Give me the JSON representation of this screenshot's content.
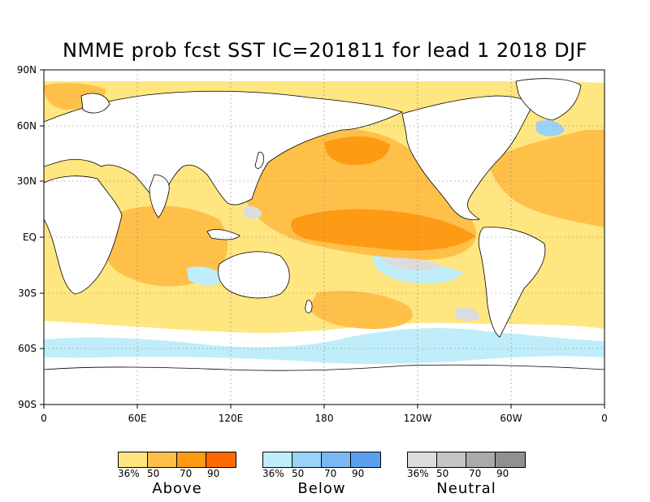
{
  "title": "NMME prob fcst SST IC=201811 for lead 1 2018 DJF",
  "lat_labels": [
    "90N",
    "60N",
    "30N",
    "EQ",
    "30S",
    "60S",
    "90S"
  ],
  "lon_labels": [
    "0",
    "60E",
    "120E",
    "180",
    "120W",
    "60W",
    "0"
  ],
  "legend": [
    {
      "category": "Above",
      "ticks": [
        "36%",
        "50",
        "70",
        "90"
      ],
      "colors": [
        "#ffe680",
        "#ffc04a",
        "#ff9a14",
        "#ff6a00"
      ]
    },
    {
      "category": "Below",
      "ticks": [
        "36%",
        "50",
        "70",
        "90"
      ],
      "colors": [
        "#bfeefa",
        "#9ad2f8",
        "#7ab8f4",
        "#5aa0ee"
      ]
    },
    {
      "category": "Neutral",
      "ticks": [
        "36%",
        "50",
        "70",
        "90"
      ],
      "colors": [
        "#dcdcdc",
        "#c4c4c4",
        "#aaaaaa",
        "#909090"
      ]
    }
  ]
}
